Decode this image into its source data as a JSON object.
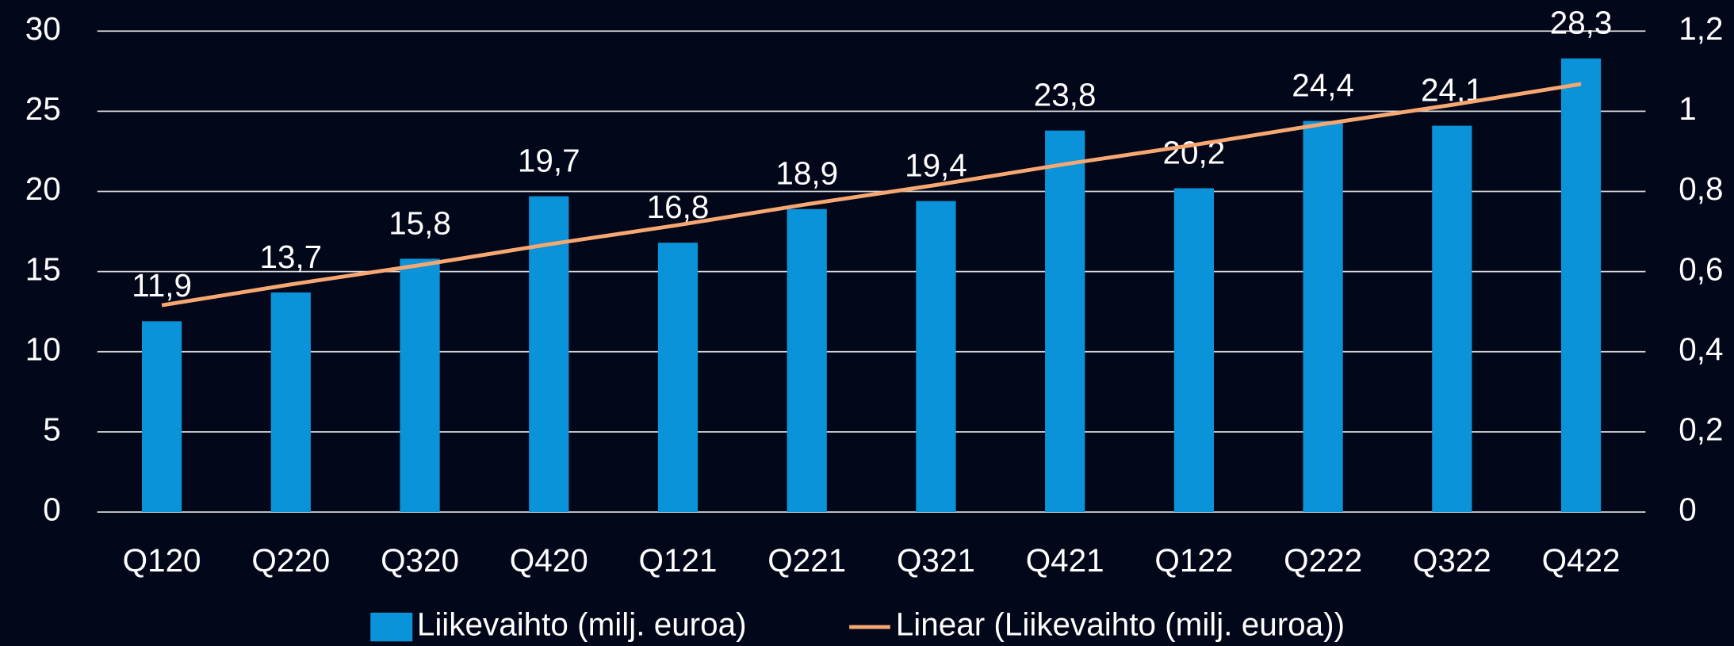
{
  "chart_data": {
    "type": "bar",
    "categories": [
      "Q120",
      "Q220",
      "Q320",
      "Q420",
      "Q121",
      "Q221",
      "Q321",
      "Q421",
      "Q122",
      "Q222",
      "Q322",
      "Q422"
    ],
    "series": [
      {
        "name": "Liikevaihto (milj. euroa)",
        "type": "bar",
        "color": "#0b93d9",
        "values": [
          11.9,
          13.7,
          15.8,
          19.7,
          16.8,
          18.9,
          19.4,
          23.8,
          20.2,
          24.4,
          24.1,
          28.3
        ],
        "value_labels": [
          "11,9",
          "13,7",
          "15,8",
          "19,7",
          "16,8",
          "18,9",
          "19,4",
          "23,8",
          "20,2",
          "24,4",
          "24,1",
          "28,3"
        ]
      },
      {
        "name": "Linear (Liikevaihto (milj. euroa))",
        "type": "line",
        "color": "#f7a872",
        "values": [
          12.9,
          14.2,
          15.4,
          16.7,
          17.9,
          19.2,
          20.4,
          21.7,
          22.9,
          24.2,
          25.4,
          26.7
        ]
      }
    ],
    "ylim": [
      0,
      30
    ],
    "yticks": [
      0,
      5,
      10,
      15,
      20,
      25,
      30
    ],
    "y2lim": [
      0,
      1.2
    ],
    "y2ticks": [
      0,
      {
        "value": 0.2,
        "label": "0,2"
      },
      {
        "value": 0.4,
        "label": "0,4"
      },
      {
        "value": 0.6,
        "label": "0,6"
      },
      {
        "value": 0.8,
        "label": "0,8"
      },
      1,
      {
        "value": 1.2,
        "label": "1,2"
      }
    ],
    "grid": true,
    "legend": "bottom"
  }
}
